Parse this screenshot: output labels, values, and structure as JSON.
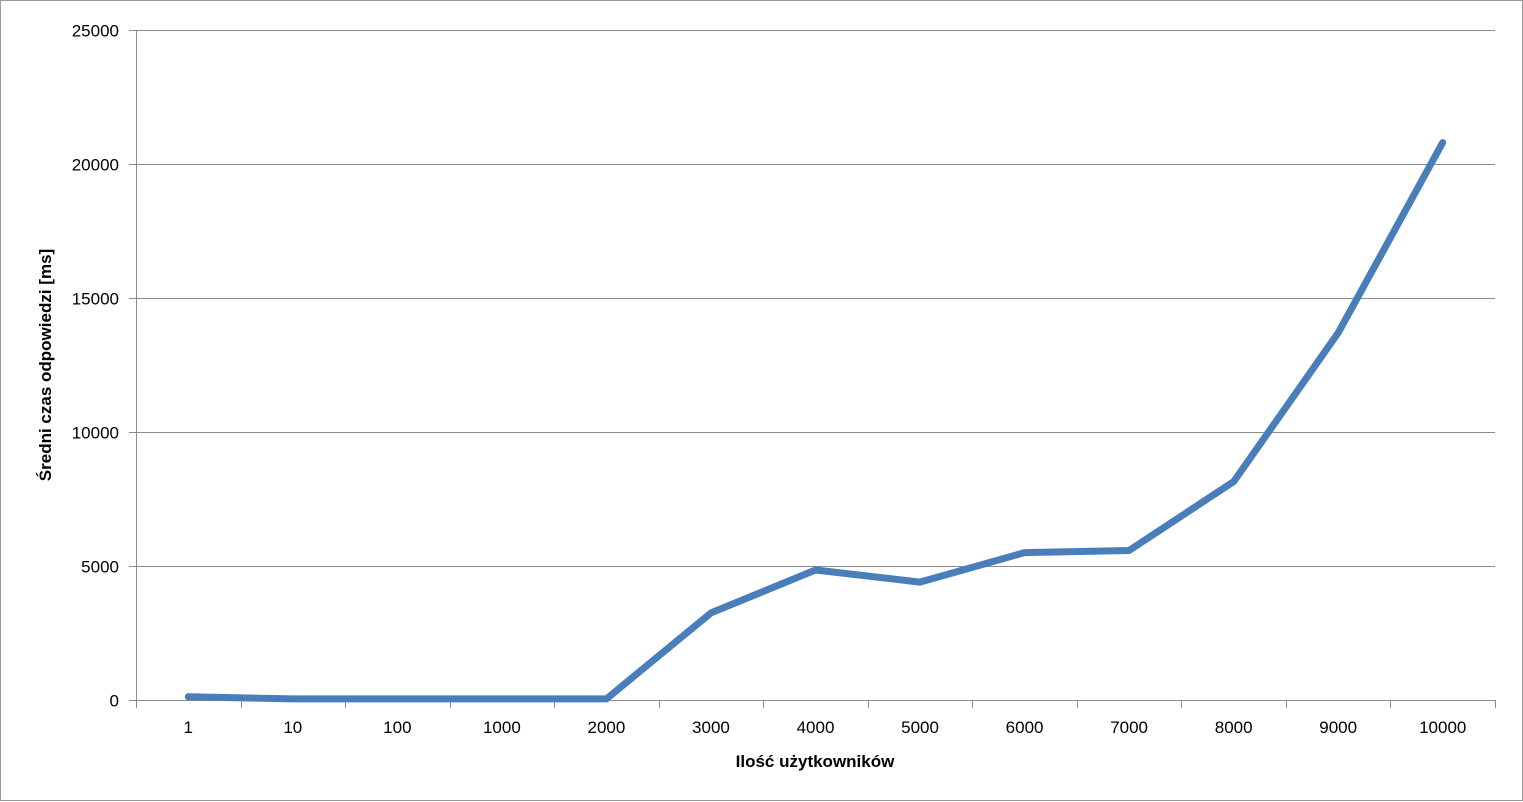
{
  "chart_data": {
    "type": "line",
    "title": "",
    "xlabel": "Ilość użytkowników",
    "ylabel": "Średni czas odpowiedzi [ms]",
    "categories": [
      "1",
      "10",
      "100",
      "1000",
      "2000",
      "3000",
      "4000",
      "5000",
      "6000",
      "7000",
      "8000",
      "9000",
      "10000"
    ],
    "series": [
      {
        "values": [
          120,
          40,
          40,
          40,
          40,
          3250,
          4850,
          4400,
          5500,
          5580,
          8150,
          13700,
          20800
        ]
      }
    ],
    "ylim": [
      0,
      25000
    ],
    "yticks": [
      0,
      5000,
      10000,
      15000,
      20000,
      25000
    ],
    "grid": true,
    "legend": "none",
    "colors": {
      "line": "#4a7ebb",
      "grid": "#8c8c8c",
      "axis": "#8c8c8c",
      "frame": "#9a9a9a"
    }
  }
}
